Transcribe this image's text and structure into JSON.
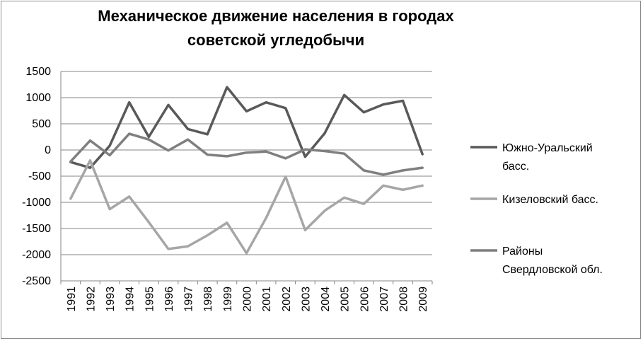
{
  "chart_data": {
    "type": "line",
    "title_lines": [
      "Механическое движение населения в городах",
      "советской угледобычи"
    ],
    "xlabel": "",
    "ylabel": "",
    "ylim": [
      -2500,
      1500
    ],
    "yticks": [
      1500,
      1000,
      500,
      0,
      -500,
      -1000,
      -1500,
      -2000,
      -2500
    ],
    "ytick_labels": [
      "1500",
      "1000",
      "500",
      "0",
      "-500",
      "-1000",
      "-1500",
      "-2000",
      "-2500"
    ],
    "categories": [
      "1991",
      "1992",
      "1993",
      "1994",
      "1995",
      "1996",
      "1997",
      "1998",
      "1999",
      "2000",
      "2001",
      "2002",
      "2003",
      "2004",
      "2005",
      "2006",
      "2007",
      "2008",
      "2009"
    ],
    "grid": "horizontal",
    "legend_position": "right",
    "series": [
      {
        "name": "Южно-Уральский басс.",
        "name_lines": [
          "Южно-Уральский",
          "басс."
        ],
        "color": "#595959",
        "values": [
          -230,
          -340,
          80,
          910,
          250,
          860,
          400,
          300,
          1200,
          740,
          910,
          800,
          -130,
          320,
          1050,
          720,
          870,
          940,
          -80
        ]
      },
      {
        "name": "Кизеловский басс.",
        "name_lines": [
          "Кизеловский басс."
        ],
        "color": "#a6a6a6",
        "values": [
          -930,
          -200,
          -1130,
          -890,
          -1380,
          -1890,
          -1840,
          -1630,
          -1390,
          -1970,
          -1300,
          -510,
          -1530,
          -1160,
          -910,
          -1030,
          -680,
          -760,
          -680
        ]
      },
      {
        "name": "Районы Свердловской обл.",
        "name_lines": [
          "Районы",
          "Свердловской обл."
        ],
        "color": "#7f7f7f",
        "values": [
          -220,
          180,
          -100,
          310,
          200,
          -10,
          200,
          -90,
          -120,
          -50,
          -30,
          -160,
          10,
          -20,
          -70,
          -390,
          -470,
          -390,
          -340
        ]
      }
    ]
  }
}
